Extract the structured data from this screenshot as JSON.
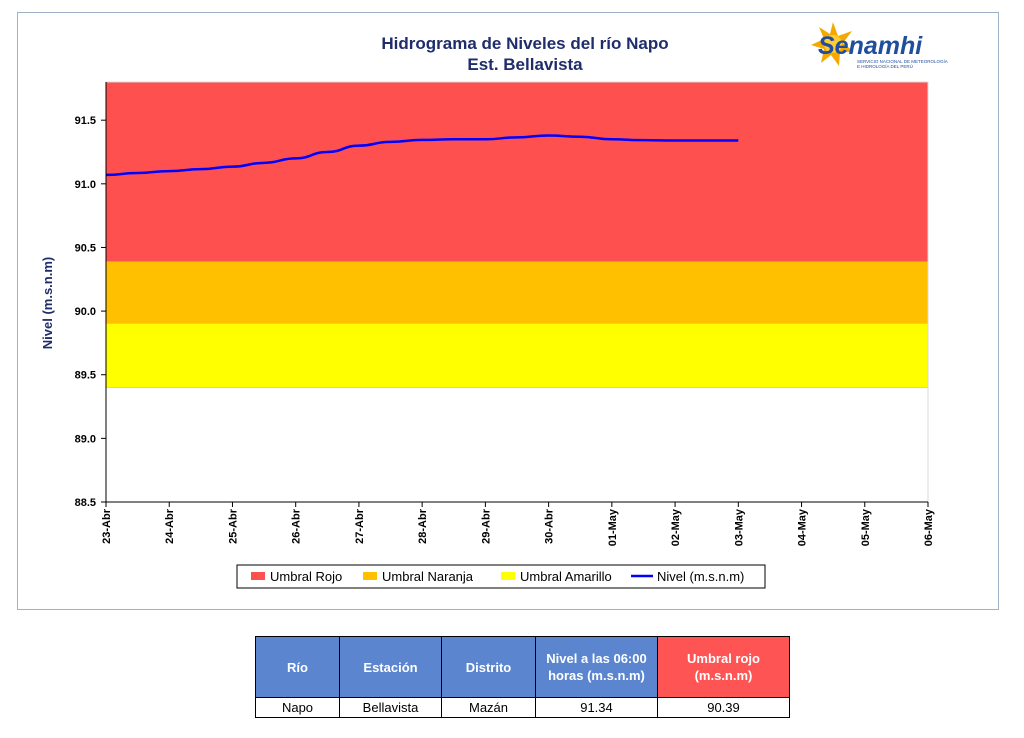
{
  "chart_data": {
    "type": "line",
    "title": [
      "Hidrograma de Niveles del río Napo",
      "Est. Bellavista"
    ],
    "ylabel": "Nivel (m.s.n.m)",
    "xlabel": "",
    "ylim": [
      88.5,
      91.8
    ],
    "yticks": [
      "88.5",
      "89.0",
      "89.5",
      "90.0",
      "90.5",
      "91.0",
      "91.5"
    ],
    "categories": [
      "23-Abr",
      "24-Abr",
      "25-Abr",
      "26-Abr",
      "27-Abr",
      "28-Abr",
      "29-Abr",
      "30-Abr",
      "01-May",
      "02-May",
      "03-May",
      "04-May",
      "05-May",
      "06-May"
    ],
    "bands": [
      {
        "name": "Umbral Amarillo",
        "from": 89.4,
        "to": 89.9,
        "color": "#ffff00"
      },
      {
        "name": "Umbral Naranja",
        "from": 89.9,
        "to": 90.39,
        "color": "#ffc000"
      },
      {
        "name": "Umbral Rojo",
        "from": 90.39,
        "to": 91.8,
        "color": "#ff5050"
      }
    ],
    "series": [
      {
        "name": "Nivel (m.s.n.m)",
        "color": "#0000ff",
        "x": [
          0,
          0.5,
          1,
          1.5,
          2,
          2.5,
          3,
          3.5,
          4,
          4.5,
          5,
          5.5,
          6,
          6.5,
          7,
          7.5,
          8,
          8.5,
          9,
          9.5,
          10
        ],
        "values": [
          91.07,
          91.085,
          91.1,
          91.115,
          91.135,
          91.165,
          91.2,
          91.25,
          91.3,
          91.33,
          91.345,
          91.35,
          91.35,
          91.365,
          91.38,
          91.37,
          91.35,
          91.343,
          91.34,
          91.34,
          91.34
        ]
      }
    ],
    "legend": {
      "position": "bottom",
      "entries": [
        "Umbral Rojo",
        "Umbral Naranja",
        "Umbral Amarillo",
        "Nivel (m.s.n.m)"
      ]
    },
    "grid": false
  },
  "logo": {
    "text": "Senamhi",
    "subtitle": [
      "SERVICIO NACIONAL DE METEOROLOGÍA",
      "E HIDROLOGÍA DEL PERÚ"
    ]
  },
  "table": {
    "headers": [
      "Río",
      "Estación",
      "Distrito",
      "Nivel a las 06:00 horas (m.s.n.m)",
      "Umbral rojo (m.s.n.m)"
    ],
    "row": [
      "Napo",
      "Bellavista",
      "Mazán",
      "91.34",
      "90.39"
    ],
    "header_colors": {
      "default": "#5b86cf",
      "umbral": "#ff5454"
    }
  }
}
